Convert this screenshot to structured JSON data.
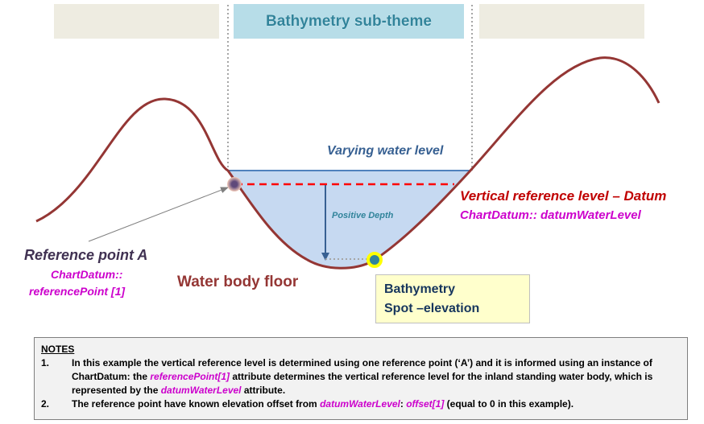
{
  "header": {
    "title": "Bathymetry sub-theme"
  },
  "labels": {
    "varying_water_level": "Varying water level",
    "vertical_reference": "Vertical reference level – Datum",
    "vertical_reference_attr": "ChartDatum:: datumWaterLevel",
    "positive_depth": "Positive Depth",
    "reference_point": "Reference point A",
    "reference_point_attr_line1": "ChartDatum::",
    "reference_point_attr_line2": "referencePoint [1]",
    "water_body_floor": "Water body floor",
    "bathymetry_line1": "Bathymetry",
    "bathymetry_line2": "Spot –elevation"
  },
  "notes": {
    "title": "NOTES",
    "item1": {
      "number": "1.",
      "part1": "In this example the vertical reference level is determined using one reference point (‘A’) and it is informed using an instance of ChartDatum: the ",
      "attr1": "referencePoint[1]",
      "part2": " attribute determines the vertical reference level for the inland standing water body, which is represented by the ",
      "attr2": "datumWaterLevel",
      "part3": " attribute."
    },
    "item2": {
      "number": "2.",
      "part1": "The reference point have known elevation offset from ",
      "attr1": "datumWaterLevel",
      "part2": ": ",
      "attr2": "offset[1]",
      "part3": " (equal to 0 in this example)."
    }
  },
  "colors": {
    "terrain": "#943634",
    "water_fill": "#c6d9f1",
    "water_surface": "#4f81bd",
    "datum_line": "#ff0000",
    "depth_arrow": "#376092",
    "header_fill": "#b7dde8",
    "side_box_fill": "#eeece1",
    "ref_point_fill": "#5f497a",
    "spot_fill": "#31849b",
    "spot_ring": "#ffff00"
  },
  "icons": {
    "reference_point": "reference-point-marker-icon",
    "spot_elevation": "spot-elevation-marker-icon"
  }
}
